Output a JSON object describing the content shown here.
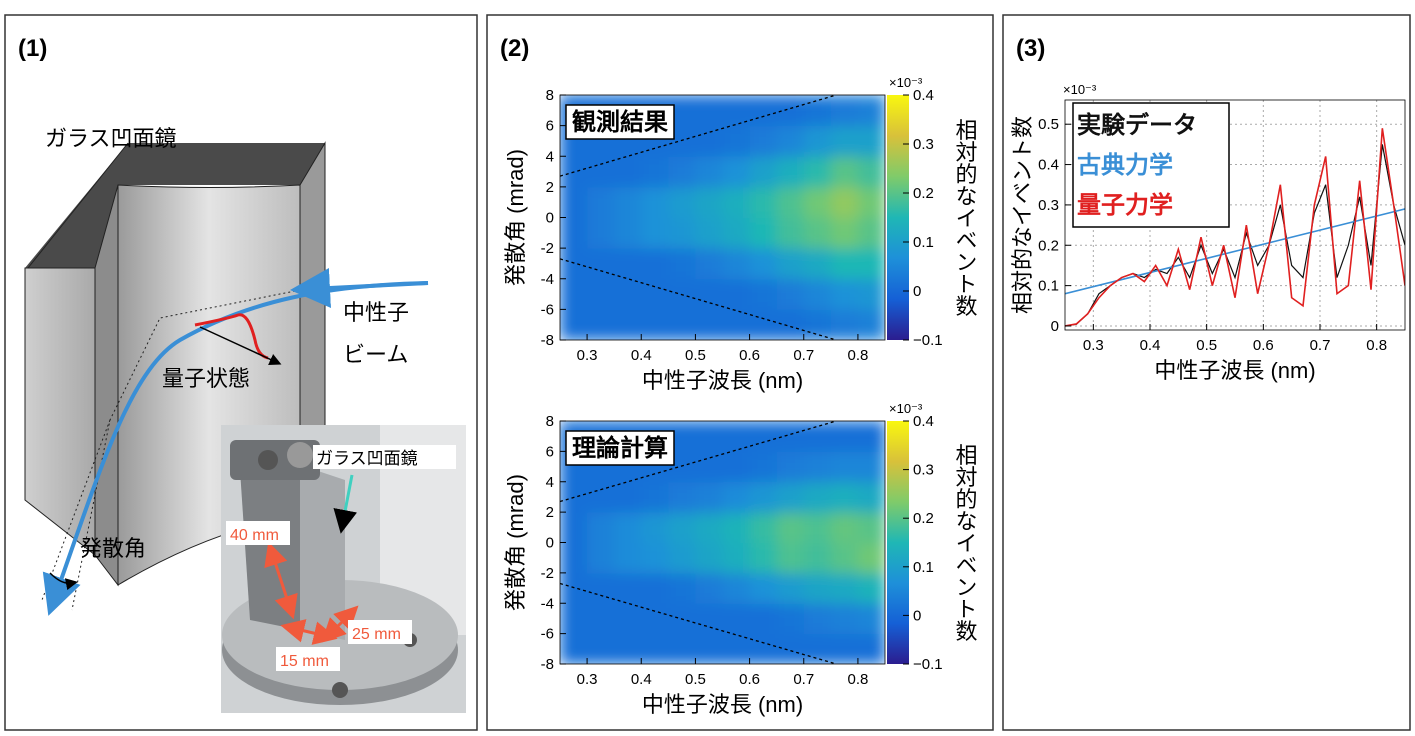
{
  "panel_labels": [
    "(1)",
    "(2)",
    "(3)"
  ],
  "diagram": {
    "mirror_label": "ガラス凹面鏡",
    "beam_label": [
      "中性子",
      "ビーム"
    ],
    "state_label": "量子状態",
    "angle_label": "発散角",
    "photo": {
      "mirror_label": "ガラス凹面鏡",
      "dims": [
        "40 mm",
        "25 mm",
        "15 mm"
      ]
    }
  },
  "chart_data": [
    {
      "type": "heatmap",
      "title": "観測結果",
      "xlabel": "中性子波長 (nm)",
      "ylabel": "発散角 (mrad)",
      "zlabel": "相対的なイベント数",
      "zscale_label": "×10⁻³",
      "x": [
        0.275,
        0.325,
        0.375,
        0.425,
        0.475,
        0.525,
        0.575,
        0.625,
        0.675,
        0.725,
        0.775,
        0.825
      ],
      "y": [
        -7,
        -5,
        -3,
        -1,
        1,
        3,
        5,
        7
      ],
      "values": [
        [
          0.01,
          0.01,
          0.01,
          0.01,
          0.01,
          0.01,
          0.01,
          0.01,
          0.01,
          0.02,
          0.03,
          0.04
        ],
        [
          0.01,
          0.01,
          0.01,
          0.01,
          0.01,
          0.01,
          0.01,
          0.02,
          0.03,
          0.05,
          0.07,
          0.08
        ],
        [
          0.01,
          0.01,
          0.01,
          0.01,
          0.02,
          0.03,
          0.05,
          0.07,
          0.1,
          0.12,
          0.15,
          0.15
        ],
        [
          0.01,
          0.03,
          0.05,
          0.07,
          0.08,
          0.1,
          0.12,
          0.15,
          0.18,
          0.2,
          0.22,
          0.2
        ],
        [
          0.01,
          0.03,
          0.05,
          0.07,
          0.09,
          0.11,
          0.13,
          0.16,
          0.19,
          0.22,
          0.25,
          0.22
        ],
        [
          0.01,
          0.01,
          0.01,
          0.02,
          0.03,
          0.05,
          0.07,
          0.1,
          0.13,
          0.16,
          0.2,
          0.18
        ],
        [
          0.01,
          0.01,
          0.01,
          0.01,
          0.01,
          0.01,
          0.02,
          0.03,
          0.05,
          0.08,
          0.1,
          0.1
        ],
        [
          0.01,
          0.01,
          0.01,
          0.01,
          0.01,
          0.01,
          0.01,
          0.01,
          0.01,
          0.02,
          0.03,
          0.04
        ]
      ],
      "xlim": [
        0.25,
        0.85
      ],
      "xticks": [
        0.3,
        0.4,
        0.5,
        0.6,
        0.7,
        0.8
      ],
      "ylim": [
        -8,
        8
      ],
      "yticks": [
        -8,
        -6,
        -4,
        -2,
        0,
        2,
        4,
        6,
        8
      ],
      "zlim": [
        -0.1,
        0.4
      ],
      "zticks": [
        {
          "value": -0.1,
          "label": "−0.1"
        },
        0,
        0.1,
        0.2,
        0.3,
        0.4
      ],
      "colormap": [
        "#2b1d8f",
        "#1560d6",
        "#1e90d9",
        "#1fb7b5",
        "#7fcb6a",
        "#d8c13a",
        "#f9f70f"
      ],
      "guide_lines": [
        {
          "x": [
            0.25,
            0.76
          ],
          "y": [
            2.7,
            8
          ]
        },
        {
          "x": [
            0.25,
            0.76
          ],
          "y": [
            -2.7,
            -8
          ]
        }
      ]
    },
    {
      "type": "heatmap",
      "title": "理論計算",
      "xlabel": "中性子波長 (nm)",
      "ylabel": "発散角 (mrad)",
      "zlabel": "相対的なイベント数",
      "zscale_label": "×10⁻³",
      "x": [
        0.275,
        0.325,
        0.375,
        0.425,
        0.475,
        0.525,
        0.575,
        0.625,
        0.675,
        0.725,
        0.775,
        0.825
      ],
      "y": [
        -7,
        -5,
        -3,
        -1,
        1,
        3,
        5,
        7
      ],
      "values": [
        [
          0.01,
          0.01,
          0.01,
          0.01,
          0.01,
          0.01,
          0.01,
          0.01,
          0.01,
          0.01,
          0.01,
          0.01
        ],
        [
          0.01,
          0.01,
          0.01,
          0.01,
          0.01,
          0.01,
          0.01,
          0.01,
          0.02,
          0.03,
          0.04,
          0.05
        ],
        [
          0.01,
          0.01,
          0.01,
          0.01,
          0.02,
          0.03,
          0.05,
          0.07,
          0.09,
          0.11,
          0.12,
          0.14
        ],
        [
          0.01,
          0.04,
          0.06,
          0.07,
          0.09,
          0.11,
          0.13,
          0.16,
          0.19,
          0.18,
          0.2,
          0.22
        ],
        [
          0.01,
          0.04,
          0.06,
          0.08,
          0.1,
          0.12,
          0.14,
          0.17,
          0.2,
          0.19,
          0.21,
          0.2
        ],
        [
          0.01,
          0.01,
          0.01,
          0.02,
          0.03,
          0.04,
          0.06,
          0.08,
          0.1,
          0.12,
          0.13,
          0.12
        ],
        [
          0.01,
          0.01,
          0.01,
          0.01,
          0.01,
          0.01,
          0.01,
          0.02,
          0.03,
          0.04,
          0.05,
          0.05
        ],
        [
          0.01,
          0.01,
          0.01,
          0.01,
          0.01,
          0.01,
          0.01,
          0.01,
          0.01,
          0.01,
          0.01,
          0.01
        ]
      ],
      "xlim": [
        0.25,
        0.85
      ],
      "xticks": [
        0.3,
        0.4,
        0.5,
        0.6,
        0.7,
        0.8
      ],
      "ylim": [
        -8,
        8
      ],
      "yticks": [
        -8,
        -6,
        -4,
        -2,
        0,
        2,
        4,
        6,
        8
      ],
      "zlim": [
        -0.1,
        0.4
      ],
      "zticks": [
        {
          "value": -0.1,
          "label": "−0.1"
        },
        0,
        0.1,
        0.2,
        0.3,
        0.4
      ],
      "colormap": [
        "#2b1d8f",
        "#1560d6",
        "#1e90d9",
        "#1fb7b5",
        "#7fcb6a",
        "#d8c13a",
        "#f9f70f"
      ],
      "guide_lines": [
        {
          "x": [
            0.25,
            0.76
          ],
          "y": [
            2.7,
            8
          ]
        },
        {
          "x": [
            0.25,
            0.76
          ],
          "y": [
            -2.7,
            -8
          ]
        }
      ]
    },
    {
      "type": "line",
      "xlabel": "中性子波長 (nm)",
      "ylabel": "相対的なイベント数",
      "yscale_label": "×10⁻³",
      "xlim": [
        0.25,
        0.85
      ],
      "xticks": [
        0.3,
        0.4,
        0.5,
        0.6,
        0.7,
        0.8
      ],
      "ylim": [
        -0.01,
        0.56
      ],
      "yticks": [
        0,
        0.1,
        0.2,
        0.3,
        0.4,
        0.5
      ],
      "grid": true,
      "legend": "top-left",
      "series": [
        {
          "name": "実験データ",
          "color": "#111111",
          "x": [
            0.25,
            0.27,
            0.29,
            0.31,
            0.33,
            0.35,
            0.37,
            0.39,
            0.41,
            0.43,
            0.45,
            0.47,
            0.49,
            0.51,
            0.53,
            0.55,
            0.57,
            0.59,
            0.61,
            0.63,
            0.65,
            0.67,
            0.69,
            0.71,
            0.73,
            0.75,
            0.77,
            0.79,
            0.81,
            0.83,
            0.85
          ],
          "values": [
            0,
            0.004,
            0.03,
            0.08,
            0.1,
            0.12,
            0.13,
            0.12,
            0.14,
            0.13,
            0.17,
            0.12,
            0.2,
            0.13,
            0.19,
            0.12,
            0.23,
            0.15,
            0.2,
            0.3,
            0.15,
            0.12,
            0.28,
            0.35,
            0.12,
            0.2,
            0.32,
            0.15,
            0.45,
            0.3,
            0.2
          ]
        },
        {
          "name": "古典力学",
          "color": "#3a8fd6",
          "x": [
            0.25,
            0.85
          ],
          "values": [
            0.08,
            0.29
          ]
        },
        {
          "name": "量子力学",
          "color": "#e02020",
          "x": [
            0.25,
            0.27,
            0.29,
            0.31,
            0.33,
            0.35,
            0.37,
            0.39,
            0.41,
            0.43,
            0.45,
            0.47,
            0.49,
            0.51,
            0.53,
            0.55,
            0.57,
            0.59,
            0.61,
            0.63,
            0.65,
            0.67,
            0.69,
            0.71,
            0.73,
            0.75,
            0.77,
            0.79,
            0.81,
            0.83,
            0.85
          ],
          "values": [
            0,
            0.005,
            0.03,
            0.07,
            0.1,
            0.12,
            0.13,
            0.11,
            0.15,
            0.1,
            0.19,
            0.09,
            0.22,
            0.1,
            0.2,
            0.07,
            0.25,
            0.08,
            0.2,
            0.35,
            0.07,
            0.05,
            0.3,
            0.42,
            0.08,
            0.1,
            0.36,
            0.09,
            0.49,
            0.3,
            0.1
          ]
        }
      ]
    }
  ]
}
